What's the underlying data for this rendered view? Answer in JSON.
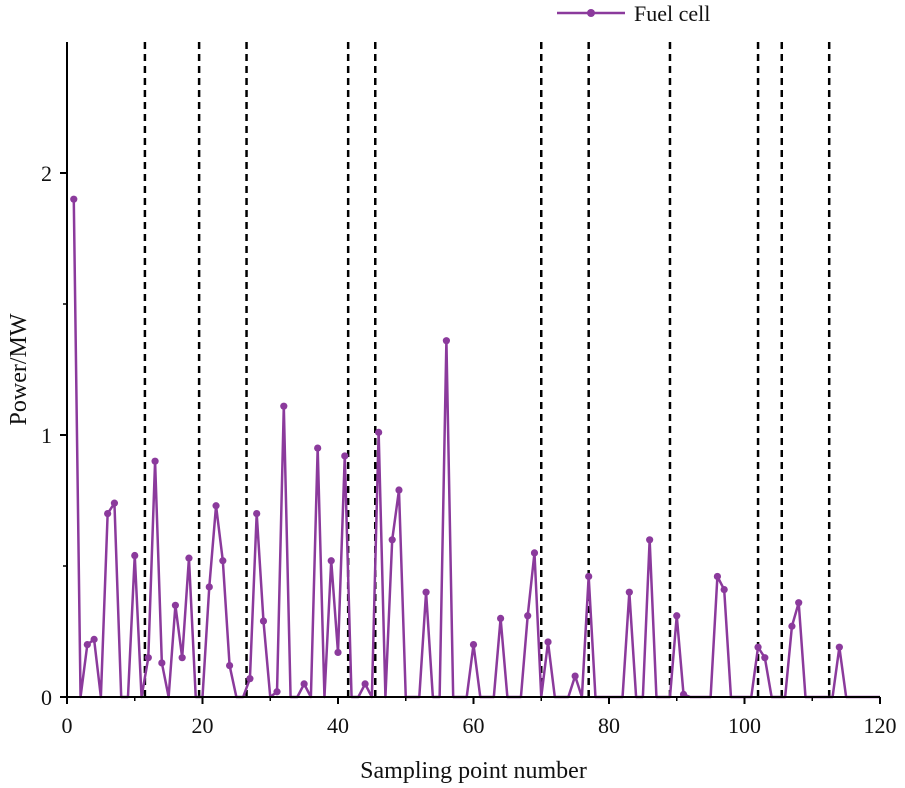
{
  "chart_data": {
    "type": "line",
    "title": "",
    "xlabel": "Sampling point number",
    "ylabel": "Power/MW",
    "xlim": [
      0,
      120
    ],
    "ylim": [
      0,
      2.5
    ],
    "x_ticks": [
      0,
      20,
      40,
      60,
      80,
      100,
      120
    ],
    "y_ticks": [
      0,
      1,
      2
    ],
    "grid": false,
    "legend_position": "top-right",
    "dashed_vertical_lines_x": [
      11.5,
      19.5,
      26.5,
      41.5,
      45.5,
      70,
      77,
      89,
      102,
      105.5,
      112.5
    ],
    "series": [
      {
        "name": "Fuel cell",
        "color": "#8b3a9c",
        "marker": "circle",
        "x": [
          1,
          2,
          3,
          4,
          5,
          6,
          7,
          8,
          9,
          10,
          11,
          12,
          13,
          14,
          15,
          16,
          17,
          18,
          19,
          20,
          21,
          22,
          23,
          24,
          25,
          26,
          27,
          28,
          29,
          30,
          31,
          32,
          33,
          34,
          35,
          36,
          37,
          38,
          39,
          40,
          41,
          42,
          43,
          44,
          45,
          46,
          47,
          48,
          49,
          50,
          51,
          52,
          53,
          54,
          55,
          56,
          57,
          58,
          59,
          60,
          61,
          62,
          63,
          64,
          65,
          66,
          67,
          68,
          69,
          70,
          71,
          72,
          73,
          74,
          75,
          76,
          77,
          78,
          79,
          80,
          81,
          82,
          83,
          84,
          85,
          86,
          87,
          88,
          89,
          90,
          91,
          92,
          93,
          94,
          95,
          96,
          97,
          98,
          99,
          100,
          101,
          102,
          103,
          104,
          105,
          106,
          107,
          108,
          109,
          110,
          111,
          112,
          113,
          114,
          115,
          116,
          117,
          118,
          119,
          120
        ],
        "y": [
          1.9,
          0.0,
          0.2,
          0.22,
          0.0,
          0.7,
          0.74,
          0.0,
          0.0,
          0.54,
          0.0,
          0.15,
          0.9,
          0.13,
          0.0,
          0.35,
          0.15,
          0.53,
          0.0,
          0.0,
          0.42,
          0.73,
          0.52,
          0.12,
          0.0,
          0.0,
          0.07,
          0.7,
          0.29,
          0.0,
          0.02,
          1.11,
          0.0,
          0.0,
          0.05,
          0.0,
          0.95,
          0.0,
          0.52,
          0.17,
          0.92,
          0.0,
          0.0,
          0.05,
          0.0,
          1.01,
          0.0,
          0.6,
          0.79,
          0.0,
          0.0,
          0.0,
          0.4,
          0.0,
          0.0,
          1.36,
          0.0,
          0.0,
          0.0,
          0.2,
          0.0,
          0.0,
          0.0,
          0.3,
          0.0,
          0.0,
          0.0,
          0.31,
          0.55,
          0.0,
          0.21,
          0.0,
          0.0,
          0.0,
          0.08,
          0.0,
          0.46,
          0.0,
          0.0,
          0.0,
          0.0,
          0.0,
          0.4,
          0.0,
          0.0,
          0.6,
          0.0,
          0.0,
          0.0,
          0.31,
          0.01,
          0.0,
          0.0,
          0.0,
          0.0,
          0.46,
          0.41,
          0.0,
          0.0,
          0.0,
          0.0,
          0.19,
          0.15,
          0.0,
          0.0,
          0.0,
          0.27,
          0.36,
          0.0,
          0.0,
          0.0,
          0.0,
          0.0,
          0.19,
          0.0,
          0.0,
          0.0,
          0.0,
          0.0,
          0.0
        ]
      }
    ]
  }
}
